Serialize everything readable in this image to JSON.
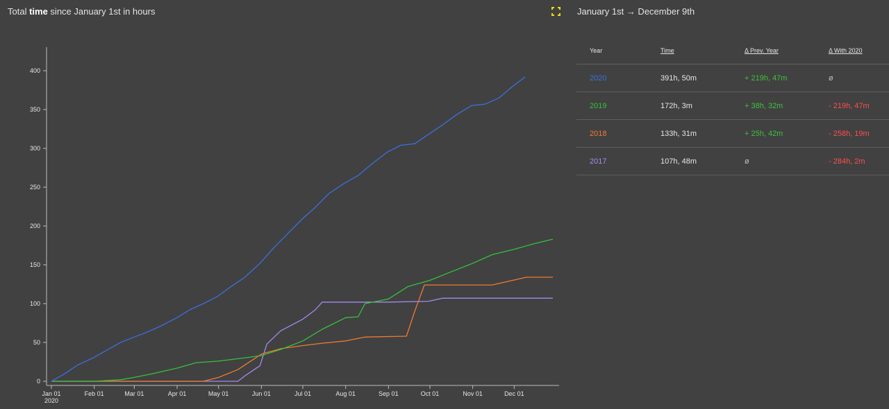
{
  "left_panel": {
    "title_pre": "Total ",
    "title_bold": "time",
    "title_post": " since January 1st in hours"
  },
  "right_panel": {
    "range_title": "January 1st → December 9th",
    "table": {
      "headers": [
        "Year",
        "Time",
        "Δ Prev. Year",
        "Δ With 2020"
      ],
      "rows": [
        {
          "year": "2020",
          "year_color": "#3b6fe0",
          "time": "391h, 50m",
          "prev": "+ 219h, 47m",
          "prev_color": "#3ec13e",
          "with": "ø",
          "with_color": "#bdbdbd"
        },
        {
          "year": "2019",
          "year_color": "#35c23a",
          "time": "172h, 3m",
          "prev": "+ 38h, 32m",
          "prev_color": "#3ec13e",
          "with": "- 219h, 47m",
          "with_color": "#ff4d4d"
        },
        {
          "year": "2018",
          "year_color": "#f07a32",
          "time": "133h, 31m",
          "prev": "+ 25h, 42m",
          "prev_color": "#3ec13e",
          "with": "- 258h, 19m",
          "with_color": "#ff4d4d"
        },
        {
          "year": "2017",
          "year_color": "#a58af0",
          "time": "107h, 48m",
          "prev": "ø",
          "prev_color": "#bdbdbd",
          "with": "- 284h, 2m",
          "with_color": "#ff4d4d"
        }
      ]
    }
  },
  "chart_data": {
    "type": "line",
    "title": "Total time since January 1st in hours",
    "xlabel": "",
    "ylabel": "",
    "ylim": [
      0,
      400
    ],
    "xlim": [
      "2020-01-01",
      "2020-12-31"
    ],
    "x_tick_labels": [
      "Jan 01\n2020",
      "Feb 01",
      "Mar 01",
      "Apr 01",
      "May 01",
      "Jun 01",
      "Jul 01",
      "Aug 01",
      "Sep 01",
      "Oct 01",
      "Nov 01",
      "Dec 01"
    ],
    "x_tick_dates": [
      "2020-01-01",
      "2020-02-01",
      "2020-03-01",
      "2020-04-01",
      "2020-05-01",
      "2020-06-01",
      "2020-07-01",
      "2020-08-01",
      "2020-09-01",
      "2020-10-01",
      "2020-11-01",
      "2020-12-01"
    ],
    "y_ticks": [
      0,
      50,
      100,
      150,
      200,
      250,
      300,
      350,
      400
    ],
    "grid": false,
    "series": [
      {
        "name": "2020",
        "color": "#3b6fe0",
        "points": [
          [
            "2020-01-01",
            0
          ],
          [
            "2020-01-10",
            9
          ],
          [
            "2020-01-20",
            21
          ],
          [
            "2020-01-31",
            30
          ],
          [
            "2020-02-10",
            40
          ],
          [
            "2020-02-20",
            50
          ],
          [
            "2020-03-01",
            57
          ],
          [
            "2020-03-10",
            63
          ],
          [
            "2020-03-20",
            71
          ],
          [
            "2020-04-01",
            82
          ],
          [
            "2020-04-10",
            92
          ],
          [
            "2020-04-20",
            100
          ],
          [
            "2020-04-30",
            109
          ],
          [
            "2020-05-10",
            122
          ],
          [
            "2020-05-20",
            134
          ],
          [
            "2020-05-31",
            152
          ],
          [
            "2020-06-10",
            172
          ],
          [
            "2020-06-20",
            190
          ],
          [
            "2020-06-30",
            208
          ],
          [
            "2020-07-10",
            224
          ],
          [
            "2020-07-20",
            242
          ],
          [
            "2020-07-31",
            255
          ],
          [
            "2020-08-10",
            265
          ],
          [
            "2020-08-20",
            280
          ],
          [
            "2020-08-31",
            295
          ],
          [
            "2020-09-10",
            304
          ],
          [
            "2020-09-20",
            306
          ],
          [
            "2020-09-30",
            318
          ],
          [
            "2020-10-10",
            330
          ],
          [
            "2020-10-20",
            343
          ],
          [
            "2020-10-31",
            355
          ],
          [
            "2020-11-10",
            357
          ],
          [
            "2020-11-20",
            365
          ],
          [
            "2020-11-30",
            380
          ],
          [
            "2020-12-09",
            392
          ]
        ]
      },
      {
        "name": "2019",
        "color": "#35c23a",
        "points": [
          [
            "2020-01-01",
            0
          ],
          [
            "2020-02-01",
            0
          ],
          [
            "2020-02-20",
            2
          ],
          [
            "2020-03-01",
            5
          ],
          [
            "2020-03-15",
            10
          ],
          [
            "2020-04-01",
            17
          ],
          [
            "2020-04-15",
            24
          ],
          [
            "2020-05-01",
            26
          ],
          [
            "2020-05-15",
            29
          ],
          [
            "2020-06-01",
            33
          ],
          [
            "2020-06-15",
            41
          ],
          [
            "2020-07-01",
            52
          ],
          [
            "2020-07-15",
            67
          ],
          [
            "2020-08-01",
            82
          ],
          [
            "2020-08-10",
            83
          ],
          [
            "2020-08-15",
            100
          ],
          [
            "2020-09-01",
            106
          ],
          [
            "2020-09-15",
            122
          ],
          [
            "2020-10-01",
            130
          ],
          [
            "2020-10-15",
            140
          ],
          [
            "2020-11-01",
            152
          ],
          [
            "2020-11-15",
            163
          ],
          [
            "2020-12-01",
            170
          ],
          [
            "2020-12-15",
            177
          ],
          [
            "2020-12-29",
            183
          ]
        ]
      },
      {
        "name": "2018",
        "color": "#f07a32",
        "points": [
          [
            "2020-01-01",
            0
          ],
          [
            "2020-04-20",
            0
          ],
          [
            "2020-05-01",
            5
          ],
          [
            "2020-05-15",
            15
          ],
          [
            "2020-06-01",
            35
          ],
          [
            "2020-06-15",
            42
          ],
          [
            "2020-07-01",
            46
          ],
          [
            "2020-07-15",
            49
          ],
          [
            "2020-08-01",
            52
          ],
          [
            "2020-08-15",
            57
          ],
          [
            "2020-09-14",
            58
          ],
          [
            "2020-09-20",
            90
          ],
          [
            "2020-09-27",
            124
          ],
          [
            "2020-10-15",
            124
          ],
          [
            "2020-11-15",
            124
          ],
          [
            "2020-11-25",
            128
          ],
          [
            "2020-12-10",
            134
          ],
          [
            "2020-12-29",
            134
          ]
        ]
      },
      {
        "name": "2017",
        "color": "#a58af0",
        "points": [
          [
            "2020-01-01",
            0
          ],
          [
            "2020-05-15",
            0
          ],
          [
            "2020-05-20",
            7
          ],
          [
            "2020-05-31",
            20
          ],
          [
            "2020-06-05",
            48
          ],
          [
            "2020-06-15",
            65
          ],
          [
            "2020-07-01",
            80
          ],
          [
            "2020-07-10",
            92
          ],
          [
            "2020-07-15",
            102
          ],
          [
            "2020-09-01",
            102
          ],
          [
            "2020-09-30",
            103
          ],
          [
            "2020-10-10",
            107
          ],
          [
            "2020-12-29",
            107
          ]
        ]
      }
    ]
  }
}
